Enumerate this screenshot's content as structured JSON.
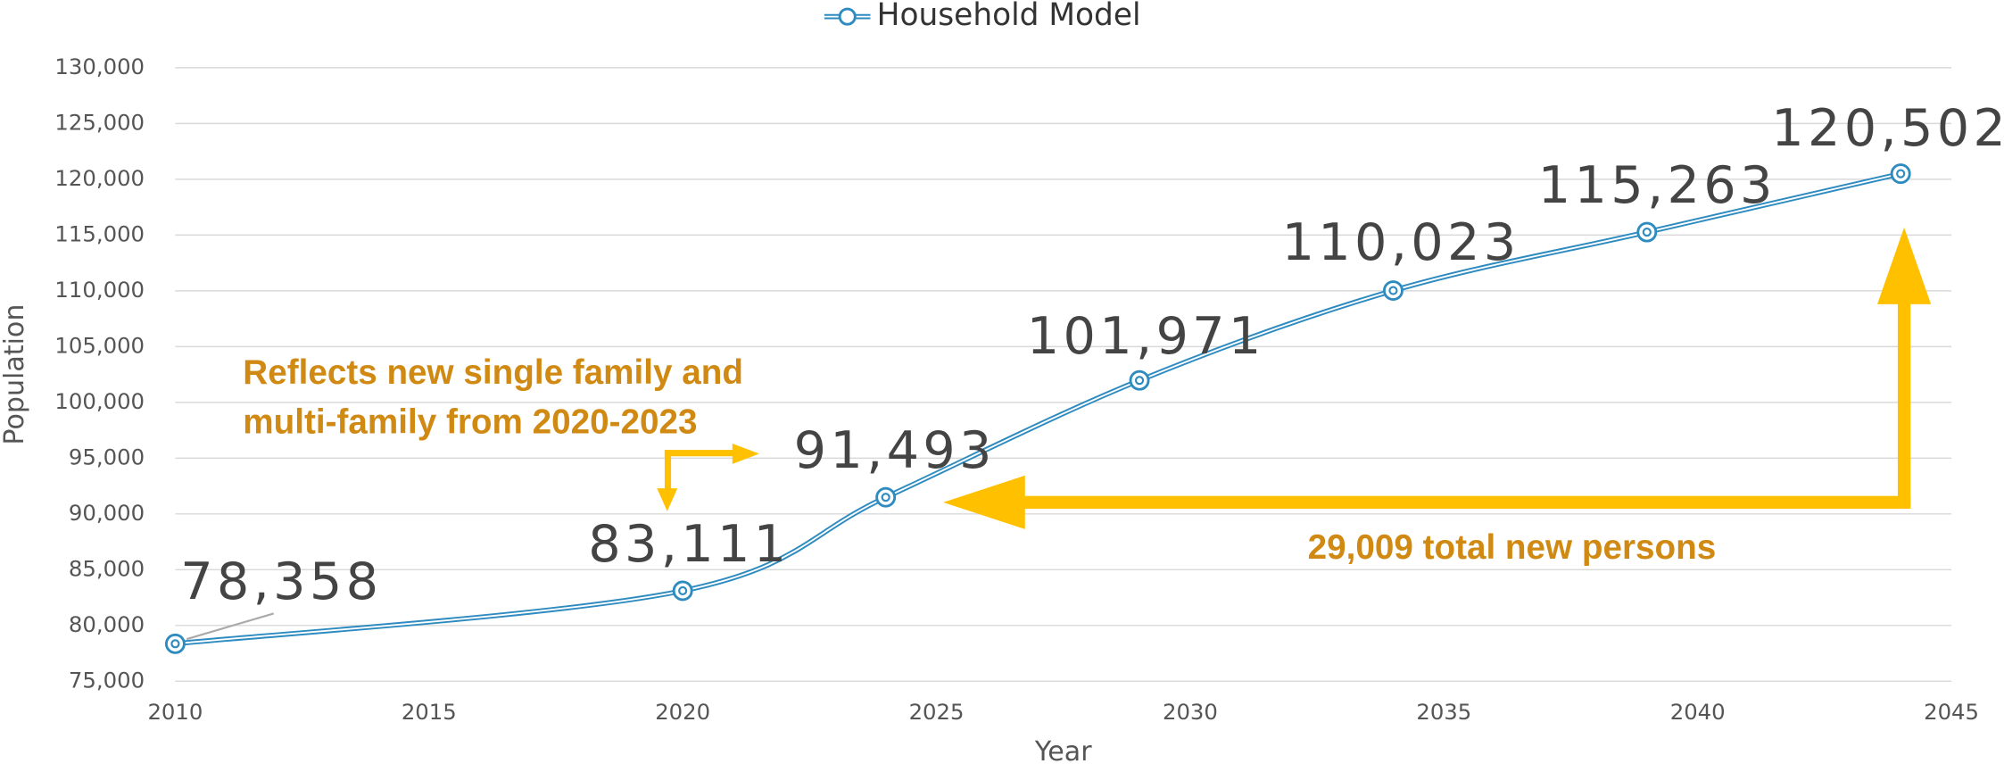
{
  "chart_data": {
    "type": "line",
    "x": [
      2010,
      2020,
      2024,
      2029,
      2034,
      2039,
      2044
    ],
    "series": [
      {
        "name": "Household Model",
        "color": "#2e8bc0",
        "values": [
          78358,
          83111,
          91493,
          101971,
          110023,
          115263,
          120502
        ],
        "value_labels": [
          "78,358",
          "83,111",
          "91,493",
          "101,971",
          "110,023",
          "115,263",
          "120,502"
        ]
      }
    ],
    "xlim": [
      2010,
      2045
    ],
    "xticks": [
      2010,
      2015,
      2020,
      2025,
      2030,
      2035,
      2040,
      2045
    ],
    "ylim": [
      75000,
      130000
    ],
    "yticks": [
      {
        "value": 75000,
        "label": "75,000"
      },
      {
        "value": 80000,
        "label": "80,000"
      },
      {
        "value": 85000,
        "label": "85,000"
      },
      {
        "value": 90000,
        "label": "90,000"
      },
      {
        "value": 95000,
        "label": "95,000"
      },
      {
        "value": 100000,
        "label": "100,000"
      },
      {
        "value": 105000,
        "label": "105,000"
      },
      {
        "value": 110000,
        "label": "110,000"
      },
      {
        "value": 115000,
        "label": "115,000"
      },
      {
        "value": 120000,
        "label": "120,000"
      },
      {
        "value": 125000,
        "label": "125,000"
      },
      {
        "value": 130000,
        "label": "130,000"
      }
    ],
    "xlabel": "Year",
    "ylabel": "Population",
    "grid": true,
    "legend": "top",
    "annotations": [
      "Reflects new single family and",
      "multi-family from 2020-2023",
      "29,009 total new persons"
    ]
  }
}
